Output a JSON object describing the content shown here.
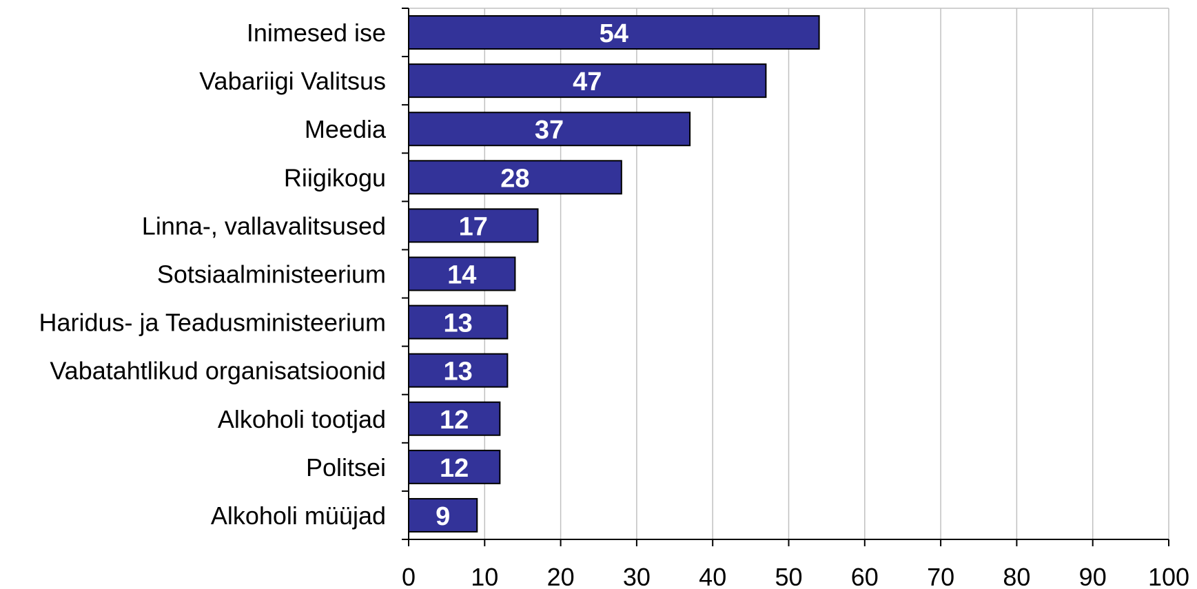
{
  "chart_data": {
    "type": "bar",
    "orientation": "horizontal",
    "categories": [
      "Inimesed ise",
      "Vabariigi Valitsus",
      "Meedia",
      "Riigikogu",
      "Linna-, vallavalitsused",
      "Sotsiaalministeerium",
      "Haridus- ja Teadusministeerium",
      "Vabatahtlikud organisatsioonid",
      "Alkoholi tootjad",
      "Politsei",
      "Alkoholi müüjad"
    ],
    "values": [
      54,
      47,
      37,
      28,
      17,
      14,
      13,
      13,
      12,
      12,
      9
    ],
    "data_labels": [
      "54",
      "47",
      "37",
      "28",
      "17",
      "14",
      "13",
      "13",
      "12",
      "12",
      "9"
    ],
    "xlim": [
      0,
      100
    ],
    "x_ticks": [
      0,
      10,
      20,
      30,
      40,
      50,
      60,
      70,
      80,
      90,
      100
    ],
    "x_tick_labels": [
      "0",
      "10",
      "20",
      "30",
      "40",
      "50",
      "60",
      "70",
      "80",
      "90",
      "100"
    ],
    "grid": "vertical",
    "legend": "none",
    "colors": {
      "bar_fill": "#333399",
      "bar_stroke": "#000000",
      "grid": "#c0c0c0",
      "axis": "#000000",
      "data_label": "#ffffff"
    }
  }
}
